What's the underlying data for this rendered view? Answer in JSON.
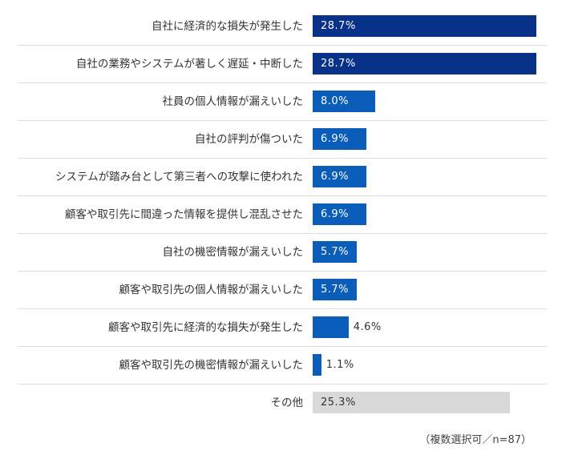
{
  "chart_data": {
    "type": "bar",
    "orientation": "horizontal",
    "categories": [
      "自社に経済的な損失が発生した",
      "自社の業務やシステムが著しく遅延・中断した",
      "社員の個人情報が漏えいした",
      "自社の評判が傷ついた",
      "システムが踏み台として第三者への攻撃に使われた",
      "顧客や取引先に間違った情報を提供し混乱させた",
      "自社の機密情報が漏えいした",
      "顧客や取引先の個人情報が漏えいした",
      "顧客や取引先に経済的な損失が発生した",
      "顧客や取引先の機密情報が漏えいした",
      "その他"
    ],
    "values": [
      28.7,
      28.7,
      8.0,
      6.9,
      6.9,
      6.9,
      5.7,
      5.7,
      4.6,
      1.1,
      25.3
    ],
    "value_labels": [
      "28.7%",
      "28.7%",
      "8.0%",
      "6.9%",
      "6.9%",
      "6.9%",
      "5.7%",
      "5.7%",
      "4.6%",
      "1.1%",
      "25.3%"
    ],
    "bar_colors": [
      "#08318a",
      "#08318a",
      "#0a5db8",
      "#0a5db8",
      "#0a5db8",
      "#0a5db8",
      "#0a5db8",
      "#0a5db8",
      "#0a5db8",
      "#0a5db8",
      "#d9d9d9"
    ],
    "xlim": [
      0,
      28.7
    ],
    "grid": false,
    "note": "（複数選択可／n=87）"
  }
}
